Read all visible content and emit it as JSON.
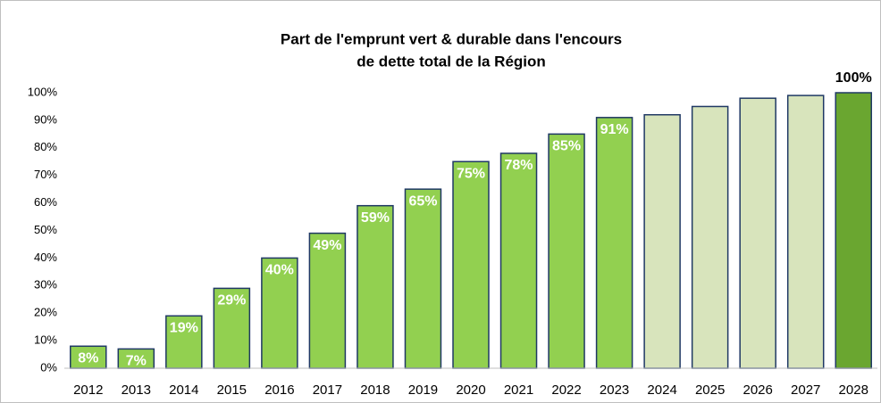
{
  "chart_data": {
    "type": "bar",
    "title": [
      "Part de l'emprunt vert & durable dans l'encours",
      "de dette total de la Région"
    ],
    "categories": [
      "2012",
      "2013",
      "2014",
      "2015",
      "2016",
      "2017",
      "2018",
      "2019",
      "2020",
      "2021",
      "2022",
      "2023",
      "2024",
      "2025",
      "2026",
      "2027",
      "2028"
    ],
    "values": [
      8,
      7,
      19,
      29,
      40,
      49,
      59,
      65,
      75,
      78,
      85,
      91,
      92,
      95,
      98,
      99,
      100
    ],
    "value_labels": [
      "8%",
      "7%",
      "19%",
      "29%",
      "40%",
      "49%",
      "59%",
      "65%",
      "75%",
      "78%",
      "85%",
      "91%",
      null,
      null,
      null,
      null,
      "100%"
    ],
    "colors": [
      "#92d050",
      "#92d050",
      "#92d050",
      "#92d050",
      "#92d050",
      "#92d050",
      "#92d050",
      "#92d050",
      "#92d050",
      "#92d050",
      "#92d050",
      "#92d050",
      "#d8e4bc",
      "#d8e4bc",
      "#d8e4bc",
      "#d8e4bc",
      "#6aa630"
    ],
    "edge_color": "#1f3864",
    "ylim": [
      0,
      100
    ],
    "yticks": [
      {
        "value": 0,
        "label": "0%"
      },
      {
        "value": 10,
        "label": "10%"
      },
      {
        "value": 20,
        "label": "20%"
      },
      {
        "value": 30,
        "label": "30%"
      },
      {
        "value": 40,
        "label": "40%"
      },
      {
        "value": 50,
        "label": "50%"
      },
      {
        "value": 60,
        "label": "60%"
      },
      {
        "value": 70,
        "label": "70%"
      },
      {
        "value": 80,
        "label": "80%"
      },
      {
        "value": 90,
        "label": "90%"
      },
      {
        "value": 100,
        "label": "100%"
      }
    ],
    "grid": false
  }
}
